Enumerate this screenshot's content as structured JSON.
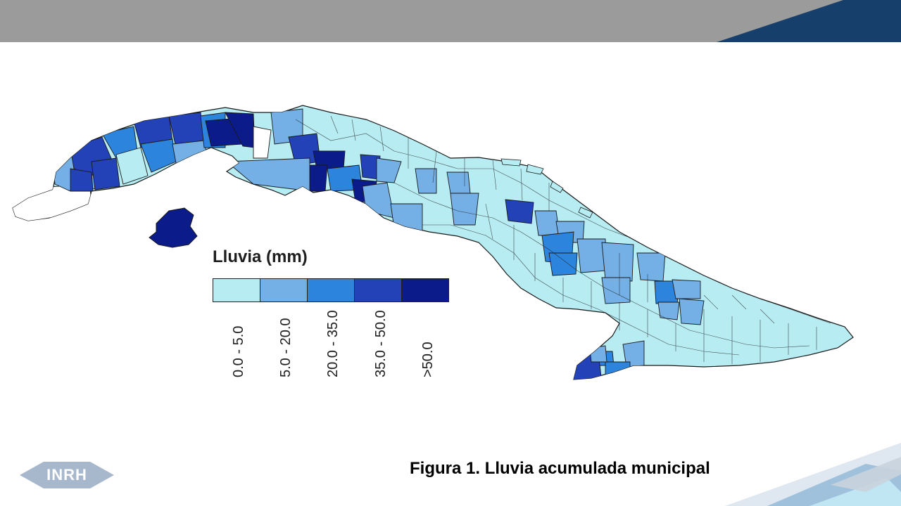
{
  "legend": {
    "title": "Lluvia (mm)",
    "classes": [
      {
        "label": "0.0 - 5.0",
        "color": "#b6ecf2"
      },
      {
        "label": "5.0 - 20.0",
        "color": "#74b0e6"
      },
      {
        "label": "20.0 - 35.0",
        "color": "#2c84dd"
      },
      {
        "label": "35.0 - 50.0",
        "color": "#2442b8"
      },
      {
        "label": ">50.0",
        "color": "#0b1b8a"
      }
    ]
  },
  "caption": "Figura 1. Lluvia acumulada municipal",
  "logo": {
    "text": "INRH"
  },
  "colors": {
    "header_gray": "#9b9b9b",
    "header_navy": "#173f6c",
    "logo_fill": "#a7b8cc",
    "deco_light": "#bfe6f2",
    "deco_mid": "#8fb6d6",
    "map_stroke": "#1a1a1a"
  }
}
